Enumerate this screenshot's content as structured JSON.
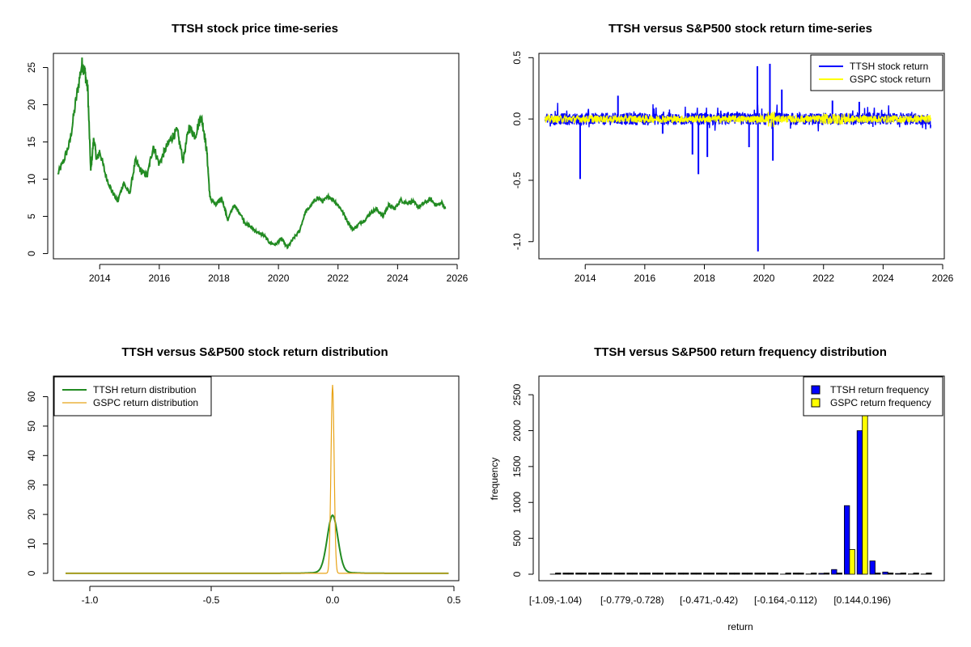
{
  "chart_data": [
    {
      "type": "line",
      "title": "TTSH stock price time-series",
      "xlabel": "",
      "ylabel": "",
      "xlim": [
        2012.5,
        2026.0
      ],
      "ylim": [
        0,
        26
      ],
      "x_ticks": [
        2014,
        2016,
        2018,
        2020,
        2022,
        2024,
        2026
      ],
      "y_ticks": [
        0,
        5,
        10,
        15,
        20,
        25
      ],
      "color": "#228B22",
      "series": [
        {
          "x": [
            2012.6,
            2012.8,
            2013.0,
            2013.2,
            2013.4,
            2013.5,
            2013.6,
            2013.7,
            2013.8,
            2013.9,
            2014.0,
            2014.2,
            2014.4,
            2014.6,
            2014.8,
            2015.0,
            2015.2,
            2015.4,
            2015.6,
            2015.8,
            2016.0,
            2016.2,
            2016.4,
            2016.6,
            2016.8,
            2017.0,
            2017.2,
            2017.4,
            2017.5,
            2017.6,
            2017.7,
            2017.9,
            2018.1,
            2018.3,
            2018.5,
            2018.7,
            2018.9,
            2019.1,
            2019.3,
            2019.5,
            2019.7,
            2019.9,
            2020.1,
            2020.3,
            2020.5,
            2020.7,
            2020.9,
            2021.1,
            2021.3,
            2021.5,
            2021.7,
            2021.9,
            2022.1,
            2022.3,
            2022.5,
            2022.7,
            2022.9,
            2023.1,
            2023.3,
            2023.5,
            2023.7,
            2023.9,
            2024.1,
            2024.3,
            2024.5,
            2024.7,
            2024.9,
            2025.1,
            2025.3,
            2025.5,
            2025.6
          ],
          "y": [
            10.7,
            12.6,
            15.0,
            20.5,
            25.5,
            24.5,
            22.0,
            11.0,
            15.5,
            12.5,
            13.8,
            10.5,
            8.5,
            7.0,
            9.5,
            8.0,
            12.5,
            11.0,
            10.5,
            14.5,
            12.0,
            14.0,
            15.5,
            16.5,
            12.5,
            17.0,
            15.8,
            18.5,
            16.5,
            13.5,
            7.5,
            6.5,
            7.5,
            4.5,
            6.5,
            5.5,
            4.0,
            3.5,
            2.8,
            2.5,
            1.5,
            1.2,
            2.0,
            0.8,
            2.0,
            3.0,
            5.5,
            6.5,
            7.5,
            7.0,
            7.7,
            7.0,
            6.0,
            4.5,
            3.2,
            4.0,
            4.5,
            5.5,
            6.0,
            5.0,
            6.5,
            6.0,
            7.2,
            6.8,
            7.0,
            6.2,
            6.8,
            7.3,
            6.5,
            6.8,
            6.0
          ]
        }
      ]
    },
    {
      "type": "line",
      "title": "TTSH versus S&P500 stock return time-series",
      "xlabel": "",
      "ylabel": "",
      "xlim": [
        2012.5,
        2026.0
      ],
      "ylim": [
        -1.1,
        0.5
      ],
      "x_ticks": [
        2014,
        2016,
        2018,
        2020,
        2022,
        2024,
        2026
      ],
      "y_ticks": [
        -1.0,
        -0.5,
        0.0,
        0.5
      ],
      "legend_position": "top-right",
      "series": [
        {
          "name": "TTSH stock return",
          "color": "#0000FF",
          "spikes": [
            [
              2013.83,
              -0.49
            ],
            [
              2015.1,
              0.19
            ],
            [
              2016.6,
              -0.12
            ],
            [
              2017.6,
              -0.29
            ],
            [
              2017.8,
              -0.45
            ],
            [
              2018.1,
              -0.31
            ],
            [
              2019.5,
              -0.23
            ],
            [
              2019.78,
              0.43
            ],
            [
              2019.8,
              -1.08
            ],
            [
              2020.2,
              0.45
            ],
            [
              2020.3,
              -0.34
            ],
            [
              2020.6,
              0.24
            ],
            [
              2022.3,
              0.15
            ],
            [
              2023.2,
              0.14
            ]
          ]
        },
        {
          "name": "GSPC stock return",
          "color": "#FFFF00",
          "band": [
            -0.03,
            0.03
          ]
        }
      ]
    },
    {
      "type": "line",
      "title": "TTSH versus S&P500 stock return distribution",
      "xlabel": "",
      "ylabel": "",
      "xlim": [
        -1.1,
        0.5
      ],
      "ylim": [
        0,
        65
      ],
      "x_ticks": [
        -1.0,
        -0.5,
        0.0,
        0.5
      ],
      "x_tick_labels": [
        "-1.0",
        "-0.5",
        "0.0",
        "0.5"
      ],
      "y_ticks": [
        0,
        10,
        20,
        30,
        40,
        50,
        60
      ],
      "legend_position": "top-left",
      "series": [
        {
          "name": "TTSH return distribution",
          "color": "#228B22",
          "peak": 18.8,
          "sd": 0.022
        },
        {
          "name": "GSPC return distribution",
          "color": "#E8A317",
          "peak": 64.0,
          "sd": 0.0065
        }
      ]
    },
    {
      "type": "bar",
      "title": "TTSH versus S&P500 return frequency distribution",
      "xlabel": "return",
      "ylabel": "frequency",
      "ylim": [
        0,
        2700
      ],
      "y_ticks": [
        0,
        500,
        1000,
        1500,
        2000,
        2500
      ],
      "legend_position": "top-right",
      "category_labels": [
        {
          "index": 0,
          "text": "[-1.09,-1.04)"
        },
        {
          "index": 6,
          "text": "[-0.779,-0.728)"
        },
        {
          "index": 12,
          "text": "[-0.471,-0.42)"
        },
        {
          "index": 18,
          "text": "[-0.164,-0.112)"
        },
        {
          "index": 24,
          "text": "[0.144,0.196)"
        }
      ],
      "categories_count": 30,
      "series": [
        {
          "name": "TTSH return frequency",
          "color": "#0000FF",
          "values": [
            1,
            0,
            0,
            0,
            0,
            0,
            0,
            0,
            0,
            0,
            0,
            0,
            0,
            0,
            0,
            0,
            0,
            0,
            1,
            0,
            3,
            12,
            65,
            955,
            2000,
            185,
            30,
            10,
            3,
            2
          ]
        },
        {
          "name": "GSPC return frequency",
          "color": "#FFFF00",
          "values": [
            0,
            0,
            0,
            0,
            0,
            0,
            0,
            0,
            0,
            0,
            0,
            0,
            0,
            0,
            0,
            0,
            0,
            0,
            0,
            0,
            0,
            0,
            0,
            345,
            2700,
            0,
            0,
            0,
            0,
            0
          ]
        }
      ]
    }
  ]
}
